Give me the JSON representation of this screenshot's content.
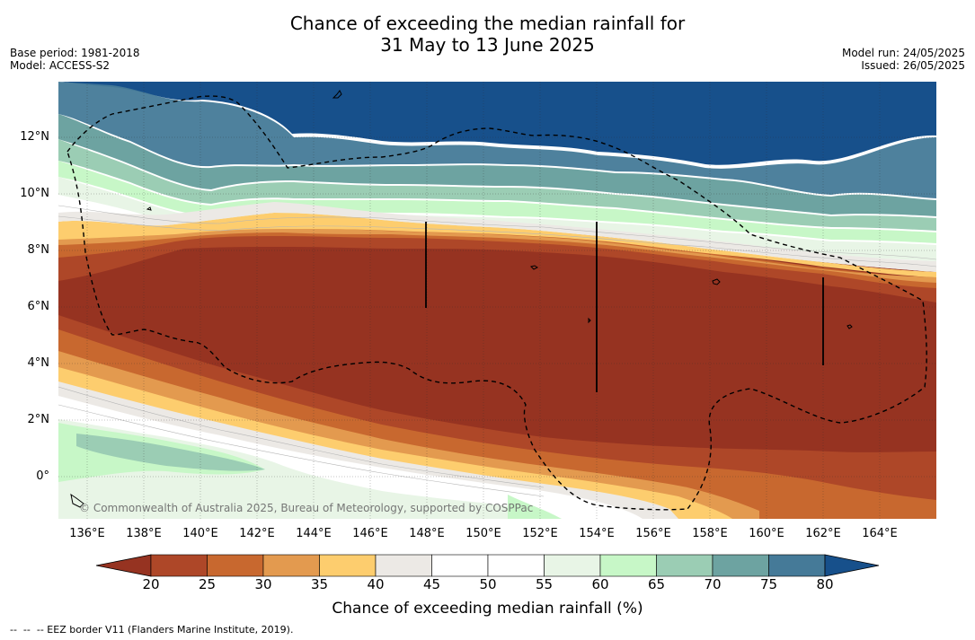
{
  "title_line1": "Chance of exceeding the median rainfall for",
  "title_line2": "31 May to 13 June 2025",
  "base_period": "Base period: 1981-2018",
  "model": "Model: ACCESS-S2",
  "model_run": "Model run: 24/05/2025",
  "issued": "Issued: 26/05/2025",
  "credit": "© Commonwealth of Australia 2025, Bureau of Meteorology, supported by COSPPac",
  "lat_labels": [
    "12°N",
    "10°N",
    "8°N",
    "6°N",
    "4°N",
    "2°N",
    "0°"
  ],
  "lon_labels": [
    "136°E",
    "138°E",
    "140°E",
    "142°E",
    "144°E",
    "146°E",
    "148°E",
    "150°E",
    "152°E",
    "154°E",
    "156°E",
    "158°E",
    "160°E",
    "162°E",
    "164°E"
  ],
  "colorbar": {
    "title": "Chance of exceeding median rainfall (%)",
    "ticks": [
      "20",
      "25",
      "30",
      "35",
      "40",
      "45",
      "50",
      "55",
      "60",
      "65",
      "70",
      "75",
      "80"
    ],
    "colors": [
      "#963321",
      "#ae4728",
      "#c8682f",
      "#e39a4f",
      "#fdcd6e",
      "#ece9e5",
      "#ffffff",
      "#ffffff",
      "#e8f5e6",
      "#c7f7c7",
      "#9bcdb4",
      "#6da3a1",
      "#457a98"
    ],
    "under_color": "#963321",
    "over_color": "#17508b"
  },
  "footer": "--  --  -- EEZ border V11 (Flanders Marine Institute, 2019)."
}
